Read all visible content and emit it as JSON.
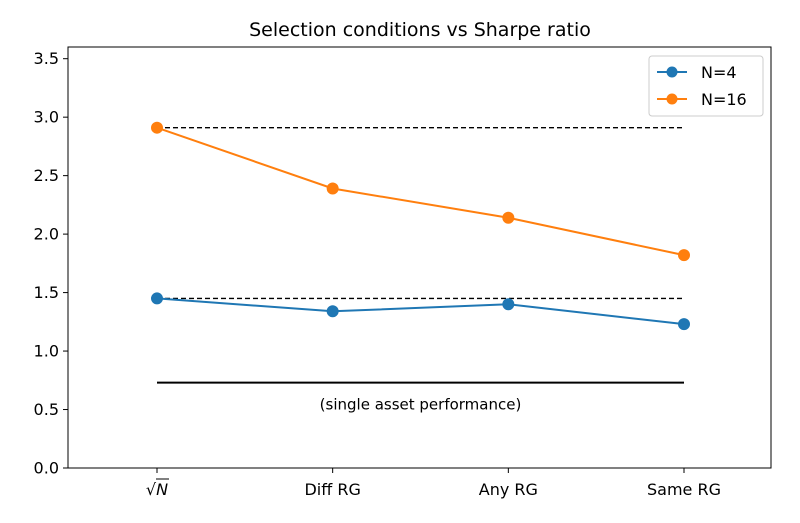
{
  "chart_data": {
    "type": "line",
    "title": "Selection conditions vs Sharpe ratio",
    "xlabel": "",
    "ylabel": "",
    "categories": [
      "√N",
      "Diff RG",
      "Any RG",
      "Same RG"
    ],
    "ylim": [
      0,
      3.6
    ],
    "yticks": [
      "0.0",
      "0.5",
      "1.0",
      "1.5",
      "2.0",
      "2.5",
      "3.0",
      "3.5"
    ],
    "ytick_values": [
      0,
      0.5,
      1.0,
      1.5,
      2.0,
      2.5,
      3.0,
      3.5
    ],
    "grid": false,
    "legend_position": "top-right",
    "series": [
      {
        "name": "N=4",
        "color": "#1f77b4",
        "values": [
          1.45,
          1.34,
          1.4,
          1.23
        ]
      },
      {
        "name": "N=16",
        "color": "#ff7f0e",
        "values": [
          2.91,
          2.39,
          2.14,
          1.82
        ]
      }
    ],
    "reference_lines": [
      {
        "style": "dashed",
        "value": 2.91,
        "color": "#000000"
      },
      {
        "style": "dashed",
        "value": 1.45,
        "color": "#000000"
      },
      {
        "style": "solid",
        "value": 0.73,
        "color": "#000000",
        "label": "(single asset performance)"
      }
    ]
  }
}
